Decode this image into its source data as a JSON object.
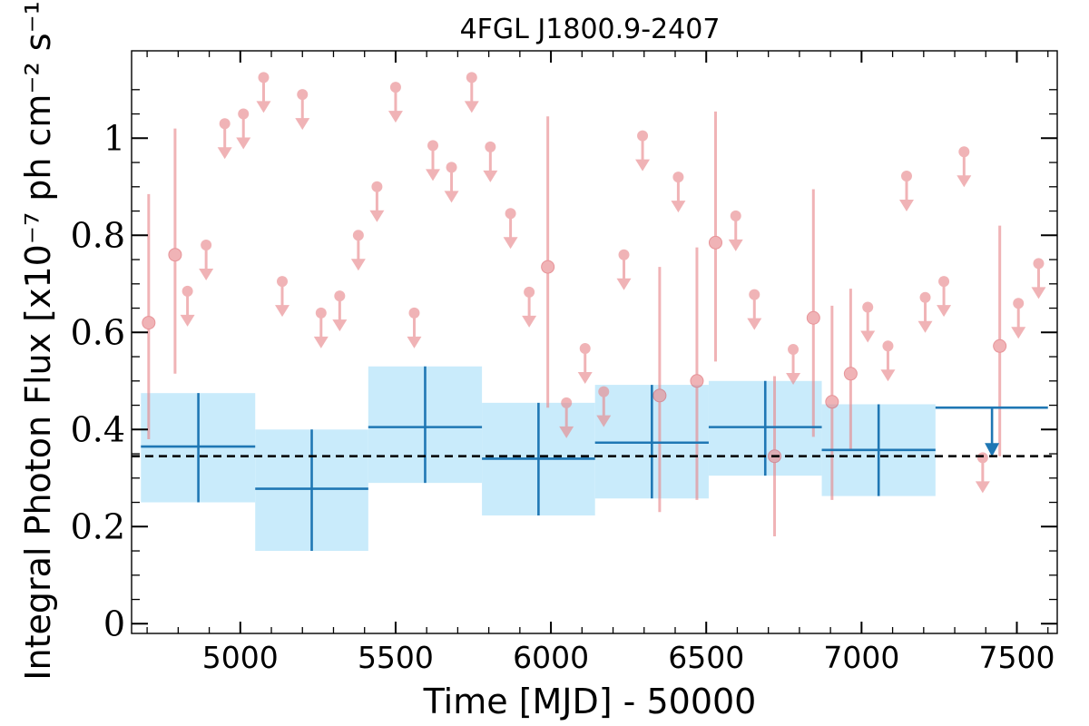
{
  "chart_data": {
    "type": "scatter",
    "title": "4FGL J1800.9-2407",
    "xlabel": "Time [MJD] - 50000",
    "ylabel": "Integral Photon Flux [x10⁻⁷ ph cm⁻² s⁻¹]",
    "xlim": [
      4650,
      7630
    ],
    "ylim": [
      -0.02,
      1.18
    ],
    "x_ticks": [
      5000,
      5500,
      6000,
      6500,
      7000,
      7500
    ],
    "x_tick_labels": [
      "5000",
      "5500",
      "6000",
      "6500",
      "7000",
      "7500"
    ],
    "y_ticks": [
      0,
      0.2,
      0.4,
      0.6,
      0.8,
      1
    ],
    "y_tick_labels": [
      "0",
      "0.2",
      "0.4",
      "0.6",
      "0.8",
      "1"
    ],
    "grid": false,
    "reference_line": {
      "y": 0.345,
      "style": "dashed",
      "color": "#000000"
    },
    "colors": {
      "short_bins": "#e8868a",
      "long_bins_line": "#1f77b4",
      "long_bins_band": "#c9ebfb",
      "reference_line": "#000000"
    },
    "series": [
      {
        "kind": "short-bin detections",
        "points": [
          {
            "x": 4705,
            "y": 0.62,
            "ylo": 0.38,
            "yhi": 0.885
          },
          {
            "x": 4790,
            "y": 0.76,
            "ylo": 0.515,
            "yhi": 1.02
          },
          {
            "x": 5990,
            "y": 0.735,
            "ylo": 0.445,
            "yhi": 1.045
          },
          {
            "x": 6350,
            "y": 0.47,
            "ylo": 0.23,
            "yhi": 0.735
          },
          {
            "x": 6470,
            "y": 0.5,
            "ylo": 0.255,
            "yhi": 0.775
          },
          {
            "x": 6530,
            "y": 0.785,
            "ylo": 0.54,
            "yhi": 1.055
          },
          {
            "x": 6720,
            "y": 0.345,
            "ylo": 0.18,
            "yhi": 0.51
          },
          {
            "x": 6845,
            "y": 0.63,
            "ylo": 0.385,
            "yhi": 0.895
          },
          {
            "x": 6905,
            "y": 0.457,
            "ylo": 0.255,
            "yhi": 0.655
          },
          {
            "x": 6965,
            "y": 0.515,
            "ylo": 0.36,
            "yhi": 0.69
          },
          {
            "x": 7445,
            "y": 0.572,
            "ylo": 0.345,
            "yhi": 0.82
          }
        ]
      },
      {
        "kind": "short-bin upper limits",
        "points": [
          {
            "x": 4890,
            "y": 0.78
          },
          {
            "x": 4830,
            "y": 0.685
          },
          {
            "x": 4950,
            "y": 1.03
          },
          {
            "x": 5010,
            "y": 1.05
          },
          {
            "x": 5075,
            "y": 1.125
          },
          {
            "x": 5135,
            "y": 0.705
          },
          {
            "x": 5200,
            "y": 1.09
          },
          {
            "x": 5260,
            "y": 0.64
          },
          {
            "x": 5320,
            "y": 0.675
          },
          {
            "x": 5380,
            "y": 0.8
          },
          {
            "x": 5440,
            "y": 0.9
          },
          {
            "x": 5500,
            "y": 1.105
          },
          {
            "x": 5560,
            "y": 0.64
          },
          {
            "x": 5620,
            "y": 0.985
          },
          {
            "x": 5680,
            "y": 0.94
          },
          {
            "x": 5745,
            "y": 1.125
          },
          {
            "x": 5805,
            "y": 0.982
          },
          {
            "x": 5870,
            "y": 0.845
          },
          {
            "x": 5930,
            "y": 0.683
          },
          {
            "x": 6050,
            "y": 0.455
          },
          {
            "x": 6110,
            "y": 0.567
          },
          {
            "x": 6170,
            "y": 0.478
          },
          {
            "x": 6235,
            "y": 0.76
          },
          {
            "x": 6295,
            "y": 1.005
          },
          {
            "x": 6410,
            "y": 0.92
          },
          {
            "x": 6595,
            "y": 0.84
          },
          {
            "x": 6655,
            "y": 0.678
          },
          {
            "x": 6780,
            "y": 0.565
          },
          {
            "x": 7020,
            "y": 0.652
          },
          {
            "x": 7085,
            "y": 0.572
          },
          {
            "x": 7145,
            "y": 0.922
          },
          {
            "x": 7205,
            "y": 0.672
          },
          {
            "x": 7265,
            "y": 0.705
          },
          {
            "x": 7330,
            "y": 0.972
          },
          {
            "x": 7390,
            "y": 0.342
          },
          {
            "x": 7505,
            "y": 0.66
          },
          {
            "x": 7570,
            "y": 0.742
          }
        ]
      },
      {
        "kind": "long-bin detections",
        "points": [
          {
            "x": 4865,
            "xlo": 4680,
            "xhi": 5048,
            "y": 0.365,
            "ylo": 0.25,
            "yhi": 0.475
          },
          {
            "x": 5230,
            "xlo": 5048,
            "xhi": 5412,
            "y": 0.278,
            "ylo": 0.15,
            "yhi": 0.4
          },
          {
            "x": 5595,
            "xlo": 5412,
            "xhi": 5778,
            "y": 0.405,
            "ylo": 0.29,
            "yhi": 0.53
          },
          {
            "x": 5960,
            "xlo": 5778,
            "xhi": 6142,
            "y": 0.34,
            "ylo": 0.223,
            "yhi": 0.455
          },
          {
            "x": 6325,
            "xlo": 6142,
            "xhi": 6508,
            "y": 0.373,
            "ylo": 0.258,
            "yhi": 0.492
          },
          {
            "x": 6690,
            "xlo": 6508,
            "xhi": 6872,
            "y": 0.405,
            "ylo": 0.305,
            "yhi": 0.5
          },
          {
            "x": 7055,
            "xlo": 6872,
            "xhi": 7238,
            "y": 0.358,
            "ylo": 0.263,
            "yhi": 0.452
          }
        ]
      },
      {
        "kind": "long-bin upper limit",
        "points": [
          {
            "x": 7420,
            "xlo": 7238,
            "xhi": 7600,
            "y": 0.445
          }
        ]
      }
    ]
  }
}
